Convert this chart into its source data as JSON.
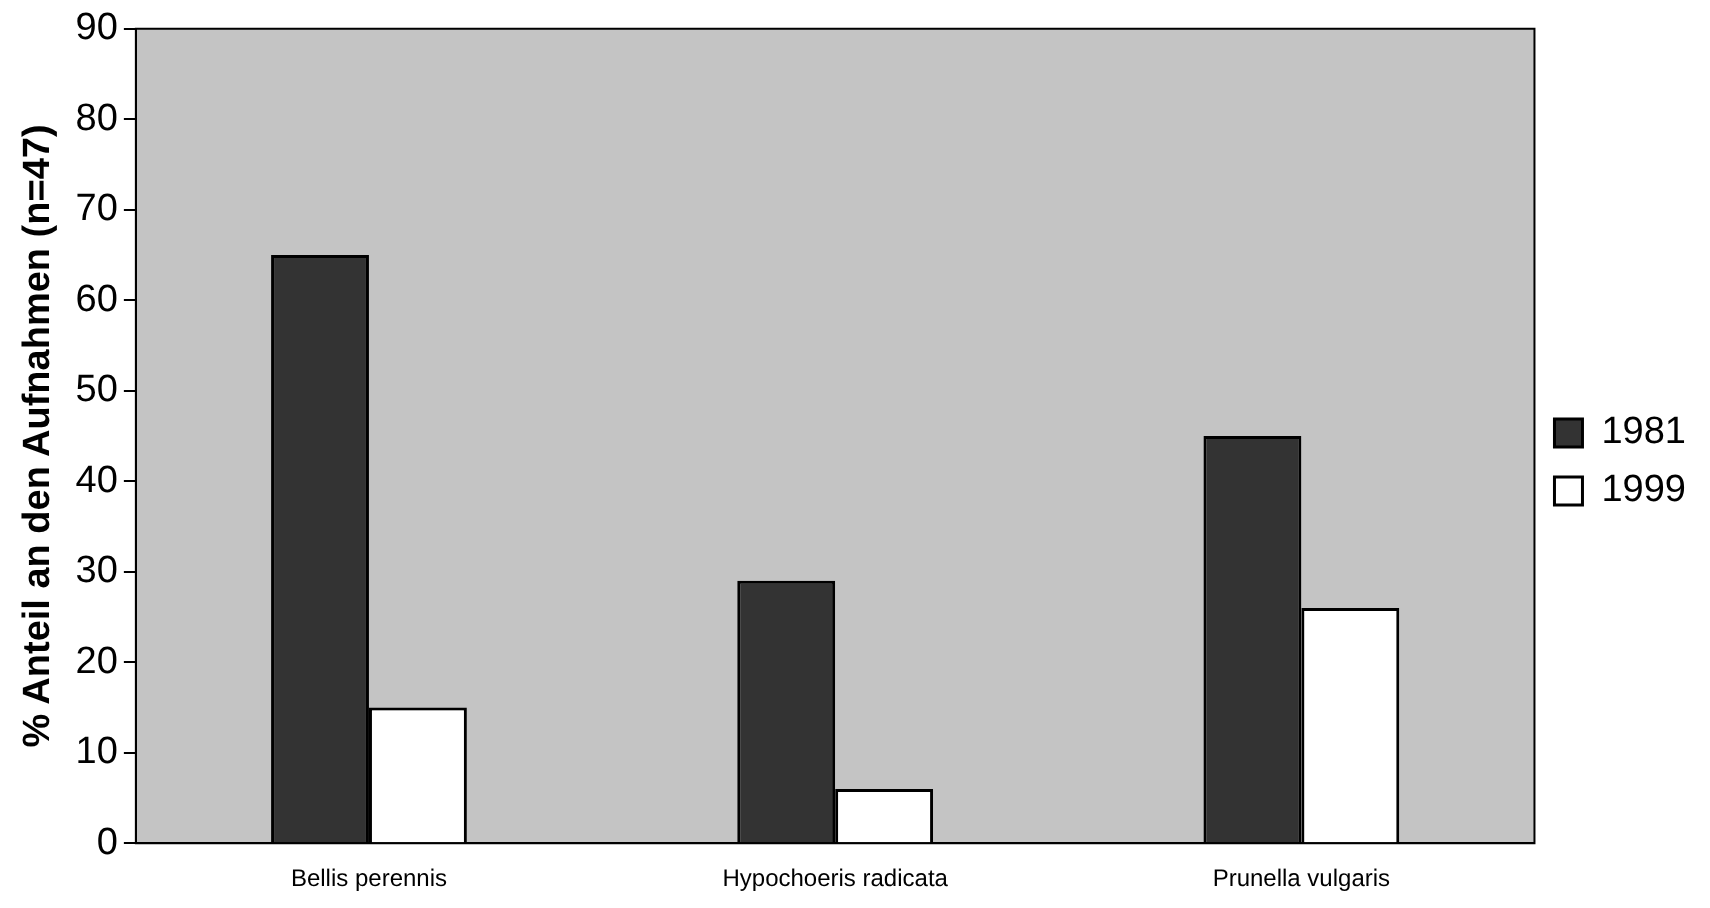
{
  "chart_data": {
    "type": "bar",
    "ylabel": "% Anteil an den Aufnahmen (n=47)",
    "categories": [
      "Bellis perennis",
      "Hypochoeris radicata",
      "Prunella vulgaris"
    ],
    "series": [
      {
        "name": "1981",
        "color": "#333333",
        "values": [
          65,
          29,
          45
        ]
      },
      {
        "name": "1999",
        "color": "#ffffff",
        "values": [
          15,
          6,
          26
        ]
      }
    ],
    "ylim": [
      0,
      90
    ],
    "yticks": [
      0,
      10,
      20,
      30,
      40,
      50,
      60,
      70,
      80,
      90
    ],
    "grid": false,
    "legend": "right"
  }
}
